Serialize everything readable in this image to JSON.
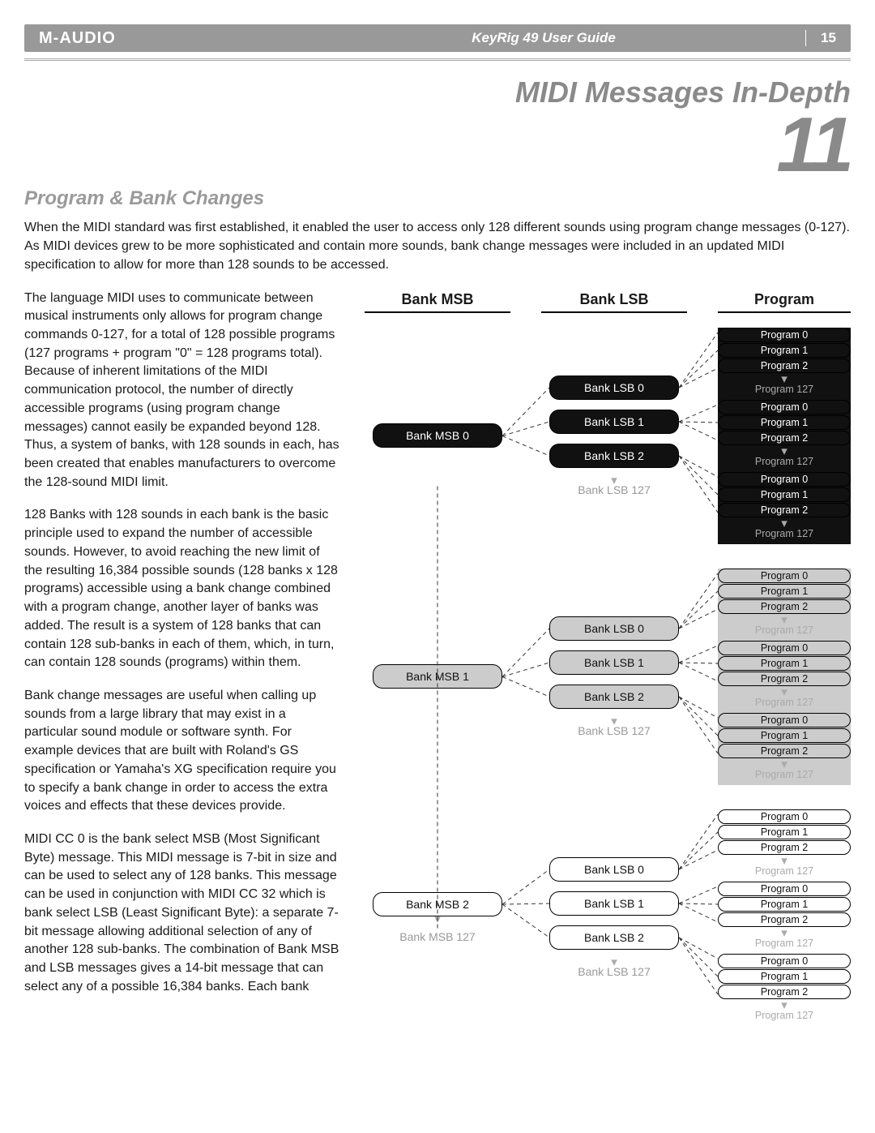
{
  "header": {
    "brand": "M-AUDIO",
    "guide": "KeyRig 49 User Guide",
    "page": "15"
  },
  "chapter": {
    "title": "MIDI Messages In-Depth",
    "number": "11"
  },
  "section_title": "Program & Bank Changes",
  "intro_text": "When the MIDI standard was first established, it enabled the user to access only 128 different sounds using program change messages (0-127). As MIDI devices grew to be more sophisticated and contain more sounds, bank change messages were included in an updated MIDI specification to allow for more than 128 sounds to be accessed.",
  "paragraphs": [
    "The language MIDI uses to communicate between musical instruments only allows for program change commands 0-127, for a total of 128 possible programs (127 programs + program \"0\" = 128 programs total). Because of inherent limitations of the MIDI communication protocol, the number of directly accessible programs (using program change messages) cannot easily be expanded beyond 128. Thus, a system of banks, with 128 sounds in each, has been created that enables manufacturers to overcome the 128-sound MIDI limit.",
    "128 Banks with 128 sounds in each bank is the basic principle used to expand the number of accessible sounds. However, to avoid reaching the new limit of the resulting 16,384 possible sounds (128 banks x 128 programs) accessible using a bank change combined with a program change, another layer of banks was added. The result is a system of 128 banks that can contain 128 sub-banks in each of them, which, in turn, can contain 128 sounds (programs) within them.",
    "Bank change messages are useful when calling up sounds from a large library that may exist in a particular sound module or software synth. For example devices that are built with Roland's GS specification or Yamaha's XG specification require you to specify a bank change in order to access the extra voices and effects that these devices provide.",
    "MIDI CC 0 is the bank select MSB (Most Significant Byte) message. This MIDI message is 7-bit in size and can be used to select any of 128 banks. This message can be used in conjunction with MIDI CC 32 which is bank select LSB (Least Significant Byte): a separate 7-bit message allowing additional selection of any of another 128 sub-banks. The combination of Bank MSB and LSB messages gives a 14-bit message that can select any of a possible 16,384 banks. Each bank"
  ],
  "diagram": {
    "col_headers": {
      "msb": "Bank MSB",
      "lsb": "Bank LSB",
      "prog": "Program"
    },
    "labels": {
      "msb_prefix": "Bank MSB ",
      "lsb_prefix": "Bank LSB ",
      "prog_prefix": "Program ",
      "lsb_final": "Bank LSB 127",
      "prog_final": "Program 127",
      "msb_final": "Bank MSB 127"
    },
    "prog_stack_items": [
      "Program 0",
      "Program 1",
      "Program 2"
    ],
    "blocks": [
      {
        "msb": "Bank MSB 0",
        "fill": "black",
        "lsbs": [
          "Bank LSB 0",
          "Bank LSB 1",
          "Bank LSB 2"
        ]
      },
      {
        "msb": "Bank MSB 1",
        "fill": "grey",
        "lsbs": [
          "Bank LSB 0",
          "Bank LSB 1",
          "Bank LSB 2"
        ]
      },
      {
        "msb": "Bank MSB 2",
        "fill": "white",
        "lsbs": [
          "Bank LSB 0",
          "Bank LSB 1",
          "Bank LSB 2"
        ]
      }
    ],
    "colors": {
      "black_fill": "#111",
      "grey_fill": "#cccccc",
      "white_fill": "#ffffff",
      "text_on_black": "#ffffff",
      "text_on_light": "#111111",
      "ghost": "#999999"
    },
    "connector_dash": "5,4"
  }
}
